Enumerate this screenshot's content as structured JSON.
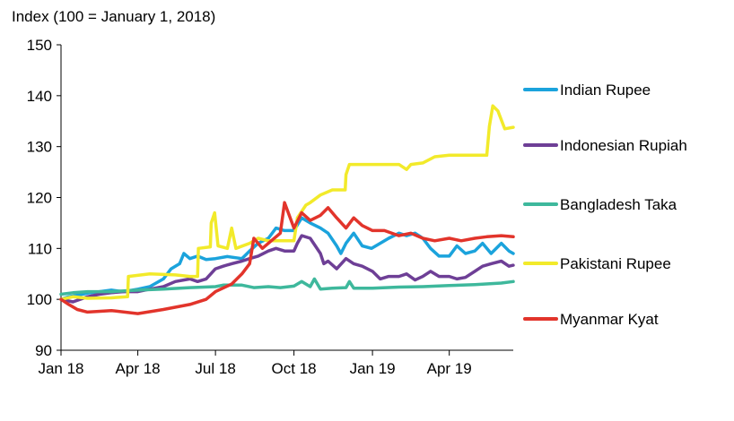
{
  "chart_data": {
    "type": "line",
    "title": "",
    "ylabel": "Index (100 = January 1, 2018)",
    "xlabel": "",
    "ylim": [
      90,
      150
    ],
    "yticks": [
      90,
      100,
      110,
      120,
      130,
      140,
      150
    ],
    "xlim": [
      "2018-01-01",
      "2019-06-15"
    ],
    "xticks": [
      {
        "date": "2018-01-01",
        "label": "Jan 18"
      },
      {
        "date": "2018-04-01",
        "label": "Apr 18"
      },
      {
        "date": "2018-07-01",
        "label": "Jul 18"
      },
      {
        "date": "2018-10-01",
        "label": "Oct 18"
      },
      {
        "date": "2019-01-01",
        "label": "Jan 19"
      },
      {
        "date": "2019-04-01",
        "label": "Apr 19"
      }
    ],
    "grid": false,
    "legend_position": "right",
    "series": [
      {
        "name": "Indian Rupee",
        "color": "#1BA3DC",
        "points": [
          [
            "2018-01-01",
            100
          ],
          [
            "2018-01-10",
            100.5
          ],
          [
            "2018-01-20",
            100.8
          ],
          [
            "2018-02-01",
            101.2
          ],
          [
            "2018-02-15",
            101.5
          ],
          [
            "2018-03-01",
            101.8
          ],
          [
            "2018-03-15",
            101.5
          ],
          [
            "2018-04-01",
            102
          ],
          [
            "2018-04-15",
            102.5
          ],
          [
            "2018-05-01",
            104
          ],
          [
            "2018-05-10",
            106
          ],
          [
            "2018-05-20",
            107
          ],
          [
            "2018-05-25",
            109
          ],
          [
            "2018-06-01",
            108
          ],
          [
            "2018-06-10",
            108.5
          ],
          [
            "2018-06-20",
            107.8
          ],
          [
            "2018-07-01",
            108
          ],
          [
            "2018-07-15",
            108.4
          ],
          [
            "2018-08-01",
            108
          ],
          [
            "2018-08-10",
            109.5
          ],
          [
            "2018-08-20",
            111
          ],
          [
            "2018-09-01",
            112
          ],
          [
            "2018-09-10",
            114
          ],
          [
            "2018-09-20",
            113.5
          ],
          [
            "2018-10-01",
            113.5
          ],
          [
            "2018-10-10",
            116
          ],
          [
            "2018-10-20",
            115
          ],
          [
            "2018-11-01",
            114
          ],
          [
            "2018-11-10",
            113
          ],
          [
            "2018-11-20",
            110.5
          ],
          [
            "2018-11-25",
            109
          ],
          [
            "2018-12-01",
            111
          ],
          [
            "2018-12-10",
            113
          ],
          [
            "2018-12-20",
            110.5
          ],
          [
            "2018-12-31",
            110
          ],
          [
            "2019-01-10",
            111
          ],
          [
            "2019-01-20",
            112
          ],
          [
            "2019-02-01",
            113
          ],
          [
            "2019-02-10",
            112.5
          ],
          [
            "2019-02-20",
            113
          ],
          [
            "2019-03-01",
            112
          ],
          [
            "2019-03-10",
            110
          ],
          [
            "2019-03-20",
            108.5
          ],
          [
            "2019-04-01",
            108.5
          ],
          [
            "2019-04-10",
            110.5
          ],
          [
            "2019-04-20",
            109
          ],
          [
            "2019-05-01",
            109.5
          ],
          [
            "2019-05-10",
            111
          ],
          [
            "2019-05-20",
            109
          ],
          [
            "2019-06-01",
            111
          ],
          [
            "2019-06-10",
            109.5
          ],
          [
            "2019-06-15",
            109
          ]
        ]
      },
      {
        "name": "Indonesian Rupiah",
        "color": "#6E3F96",
        "points": [
          [
            "2018-01-01",
            100
          ],
          [
            "2018-01-15",
            99.5
          ],
          [
            "2018-02-01",
            100.5
          ],
          [
            "2018-02-15",
            101
          ],
          [
            "2018-03-01",
            101.3
          ],
          [
            "2018-03-15",
            101.5
          ],
          [
            "2018-04-01",
            101.5
          ],
          [
            "2018-04-15",
            102
          ],
          [
            "2018-05-01",
            102.5
          ],
          [
            "2018-05-15",
            103.5
          ],
          [
            "2018-06-01",
            104
          ],
          [
            "2018-06-10",
            103.5
          ],
          [
            "2018-06-20",
            104
          ],
          [
            "2018-07-01",
            106
          ],
          [
            "2018-07-10",
            106.5
          ],
          [
            "2018-07-20",
            107
          ],
          [
            "2018-08-01",
            107.5
          ],
          [
            "2018-08-10",
            108
          ],
          [
            "2018-08-20",
            108.5
          ],
          [
            "2018-09-01",
            109.5
          ],
          [
            "2018-09-10",
            110
          ],
          [
            "2018-09-20",
            109.5
          ],
          [
            "2018-10-01",
            109.5
          ],
          [
            "2018-10-05",
            111
          ],
          [
            "2018-10-10",
            112.5
          ],
          [
            "2018-10-20",
            112
          ],
          [
            "2018-11-01",
            109
          ],
          [
            "2018-11-05",
            107
          ],
          [
            "2018-11-10",
            107.5
          ],
          [
            "2018-11-20",
            106
          ],
          [
            "2018-12-01",
            108
          ],
          [
            "2018-12-10",
            107
          ],
          [
            "2018-12-20",
            106.5
          ],
          [
            "2019-01-01",
            105.5
          ],
          [
            "2019-01-10",
            104
          ],
          [
            "2019-01-20",
            104.5
          ],
          [
            "2019-02-01",
            104.5
          ],
          [
            "2019-02-10",
            105
          ],
          [
            "2019-02-20",
            103.8
          ],
          [
            "2019-03-01",
            104.5
          ],
          [
            "2019-03-10",
            105.5
          ],
          [
            "2019-03-20",
            104.5
          ],
          [
            "2019-04-01",
            104.5
          ],
          [
            "2019-04-10",
            104
          ],
          [
            "2019-04-20",
            104.3
          ],
          [
            "2019-05-01",
            105.5
          ],
          [
            "2019-05-10",
            106.5
          ],
          [
            "2019-05-20",
            107
          ],
          [
            "2019-06-01",
            107.5
          ],
          [
            "2019-06-10",
            106.5
          ],
          [
            "2019-06-15",
            106.7
          ]
        ]
      },
      {
        "name": "Bangladesh Taka",
        "color": "#3EB89C",
        "points": [
          [
            "2018-01-01",
            101
          ],
          [
            "2018-01-15",
            101.3
          ],
          [
            "2018-02-01",
            101.5
          ],
          [
            "2018-03-01",
            101.5
          ],
          [
            "2018-04-01",
            101.8
          ],
          [
            "2018-05-01",
            102
          ],
          [
            "2018-06-01",
            102.3
          ],
          [
            "2018-07-01",
            102.5
          ],
          [
            "2018-07-10",
            102.8
          ],
          [
            "2018-08-01",
            102.8
          ],
          [
            "2018-08-15",
            102.3
          ],
          [
            "2018-09-01",
            102.5
          ],
          [
            "2018-09-15",
            102.3
          ],
          [
            "2018-10-01",
            102.6
          ],
          [
            "2018-10-10",
            103.5
          ],
          [
            "2018-10-20",
            102.5
          ],
          [
            "2018-10-25",
            104
          ],
          [
            "2018-11-01",
            102
          ],
          [
            "2018-11-15",
            102.2
          ],
          [
            "2018-12-01",
            102.3
          ],
          [
            "2018-12-05",
            103.5
          ],
          [
            "2018-12-10",
            102.2
          ],
          [
            "2019-01-01",
            102.2
          ],
          [
            "2019-02-01",
            102.4
          ],
          [
            "2019-03-01",
            102.5
          ],
          [
            "2019-04-01",
            102.7
          ],
          [
            "2019-05-01",
            102.9
          ],
          [
            "2019-06-01",
            103.2
          ],
          [
            "2019-06-15",
            103.5
          ]
        ]
      },
      {
        "name": "Pakistani Rupee",
        "color": "#F2EA2A",
        "points": [
          [
            "2018-01-01",
            100
          ],
          [
            "2018-01-15",
            100.5
          ],
          [
            "2018-02-01",
            100.2
          ],
          [
            "2018-03-01",
            100.3
          ],
          [
            "2018-03-20",
            100.5
          ],
          [
            "2018-03-21",
            104.5
          ],
          [
            "2018-04-15",
            105
          ],
          [
            "2018-05-15",
            104.8
          ],
          [
            "2018-06-01",
            104.5
          ],
          [
            "2018-06-10",
            104.5
          ],
          [
            "2018-06-11",
            110
          ],
          [
            "2018-06-25",
            110.3
          ],
          [
            "2018-06-26",
            115
          ],
          [
            "2018-06-30",
            117
          ],
          [
            "2018-07-04",
            110.5
          ],
          [
            "2018-07-15",
            110
          ],
          [
            "2018-07-20",
            114
          ],
          [
            "2018-07-25",
            110
          ],
          [
            "2018-08-10",
            111
          ],
          [
            "2018-08-20",
            112
          ],
          [
            "2018-09-01",
            111.5
          ],
          [
            "2018-09-15",
            111.5
          ],
          [
            "2018-10-01",
            111.5
          ],
          [
            "2018-10-05",
            116
          ],
          [
            "2018-10-15",
            118.5
          ],
          [
            "2018-10-20",
            119
          ],
          [
            "2018-11-01",
            120.5
          ],
          [
            "2018-11-15",
            121.5
          ],
          [
            "2018-11-30",
            121.5
          ],
          [
            "2018-12-01",
            124.5
          ],
          [
            "2018-12-05",
            126.5
          ],
          [
            "2019-01-01",
            126.5
          ],
          [
            "2019-02-01",
            126.5
          ],
          [
            "2019-02-10",
            125.5
          ],
          [
            "2019-02-15",
            126.5
          ],
          [
            "2019-03-01",
            126.8
          ],
          [
            "2019-03-15",
            128
          ],
          [
            "2019-04-01",
            128.3
          ],
          [
            "2019-05-01",
            128.3
          ],
          [
            "2019-05-15",
            128.3
          ],
          [
            "2019-05-18",
            134
          ],
          [
            "2019-05-22",
            138
          ],
          [
            "2019-05-28",
            137
          ],
          [
            "2019-06-05",
            133.5
          ],
          [
            "2019-06-15",
            133.8
          ]
        ]
      },
      {
        "name": "Myanmar Kyat",
        "color": "#E2342B",
        "points": [
          [
            "2018-01-01",
            100
          ],
          [
            "2018-01-10",
            99
          ],
          [
            "2018-01-20",
            98
          ],
          [
            "2018-02-01",
            97.5
          ],
          [
            "2018-03-01",
            97.8
          ],
          [
            "2018-04-01",
            97.2
          ],
          [
            "2018-05-01",
            98
          ],
          [
            "2018-06-01",
            99
          ],
          [
            "2018-06-20",
            100
          ],
          [
            "2018-07-01",
            101.5
          ],
          [
            "2018-07-20",
            103
          ],
          [
            "2018-08-01",
            105
          ],
          [
            "2018-08-10",
            107
          ],
          [
            "2018-08-15",
            112
          ],
          [
            "2018-08-25",
            110
          ],
          [
            "2018-09-01",
            111
          ],
          [
            "2018-09-15",
            113
          ],
          [
            "2018-09-20",
            119
          ],
          [
            "2018-10-01",
            114
          ],
          [
            "2018-10-10",
            117
          ],
          [
            "2018-10-20",
            115.5
          ],
          [
            "2018-11-01",
            116.5
          ],
          [
            "2018-11-10",
            118
          ],
          [
            "2018-11-20",
            116
          ],
          [
            "2018-12-01",
            114
          ],
          [
            "2018-12-10",
            116
          ],
          [
            "2018-12-20",
            114.5
          ],
          [
            "2019-01-01",
            113.5
          ],
          [
            "2019-01-15",
            113.5
          ],
          [
            "2019-02-01",
            112.5
          ],
          [
            "2019-02-15",
            113
          ],
          [
            "2019-03-01",
            112
          ],
          [
            "2019-03-15",
            111.5
          ],
          [
            "2019-04-01",
            112
          ],
          [
            "2019-04-15",
            111.5
          ],
          [
            "2019-05-01",
            112
          ],
          [
            "2019-05-15",
            112.3
          ],
          [
            "2019-06-01",
            112.5
          ],
          [
            "2019-06-15",
            112.3
          ]
        ]
      }
    ]
  }
}
